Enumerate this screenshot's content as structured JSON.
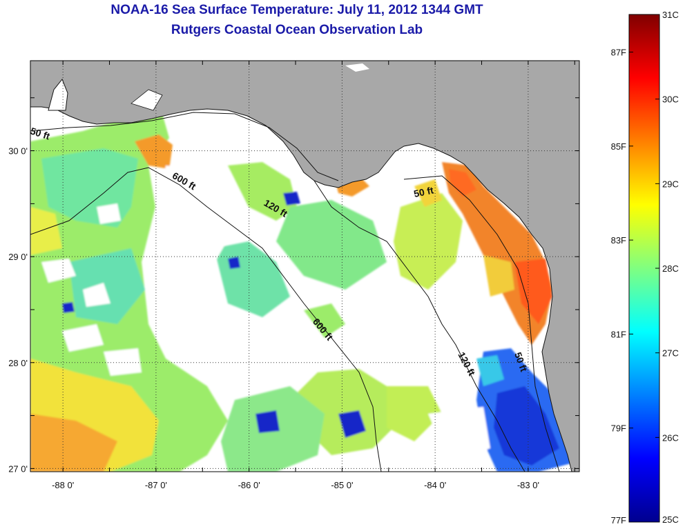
{
  "title_line1": "NOAA-16 Sea Surface Temperature:  July 11, 2012 1344 GMT",
  "title_line2": "Rutgers Coastal Ocean Observation Lab",
  "map": {
    "lon_range": [
      -88.35,
      -82.45
    ],
    "lat_range": [
      26.97,
      30.85
    ],
    "lon_ticks": [
      {
        "value": -88,
        "label": "-88 0'"
      },
      {
        "value": -87,
        "label": "-87 0'"
      },
      {
        "value": -86,
        "label": "-86 0'"
      },
      {
        "value": -85,
        "label": "-85 0'"
      },
      {
        "value": -84,
        "label": "-84 0'"
      },
      {
        "value": -83,
        "label": "-83 0'"
      }
    ],
    "lat_ticks": [
      {
        "value": 30,
        "label": "30 0'"
      },
      {
        "value": 29,
        "label": "29 0'"
      },
      {
        "value": 28,
        "label": "28 0'"
      },
      {
        "value": 27,
        "label": "27 0'"
      }
    ],
    "land_color": "#a8a8a8",
    "gridlines": "dotted",
    "contour_labels": [
      "50 ft",
      "600 ft",
      "120 ft",
      "50 ft",
      "600 ft",
      "120 ft",
      "50 ft"
    ]
  },
  "colorbar": {
    "celsius_range": [
      25,
      31
    ],
    "celsius_labels": [
      "31C",
      "30C",
      "29C",
      "28C",
      "27C",
      "26C",
      "25C"
    ],
    "fahrenheit_labels": [
      "87F",
      "85F",
      "83F",
      "81F",
      "79F",
      "77F"
    ],
    "fahrenheit_values": [
      87,
      85,
      83,
      81,
      79,
      77
    ]
  }
}
